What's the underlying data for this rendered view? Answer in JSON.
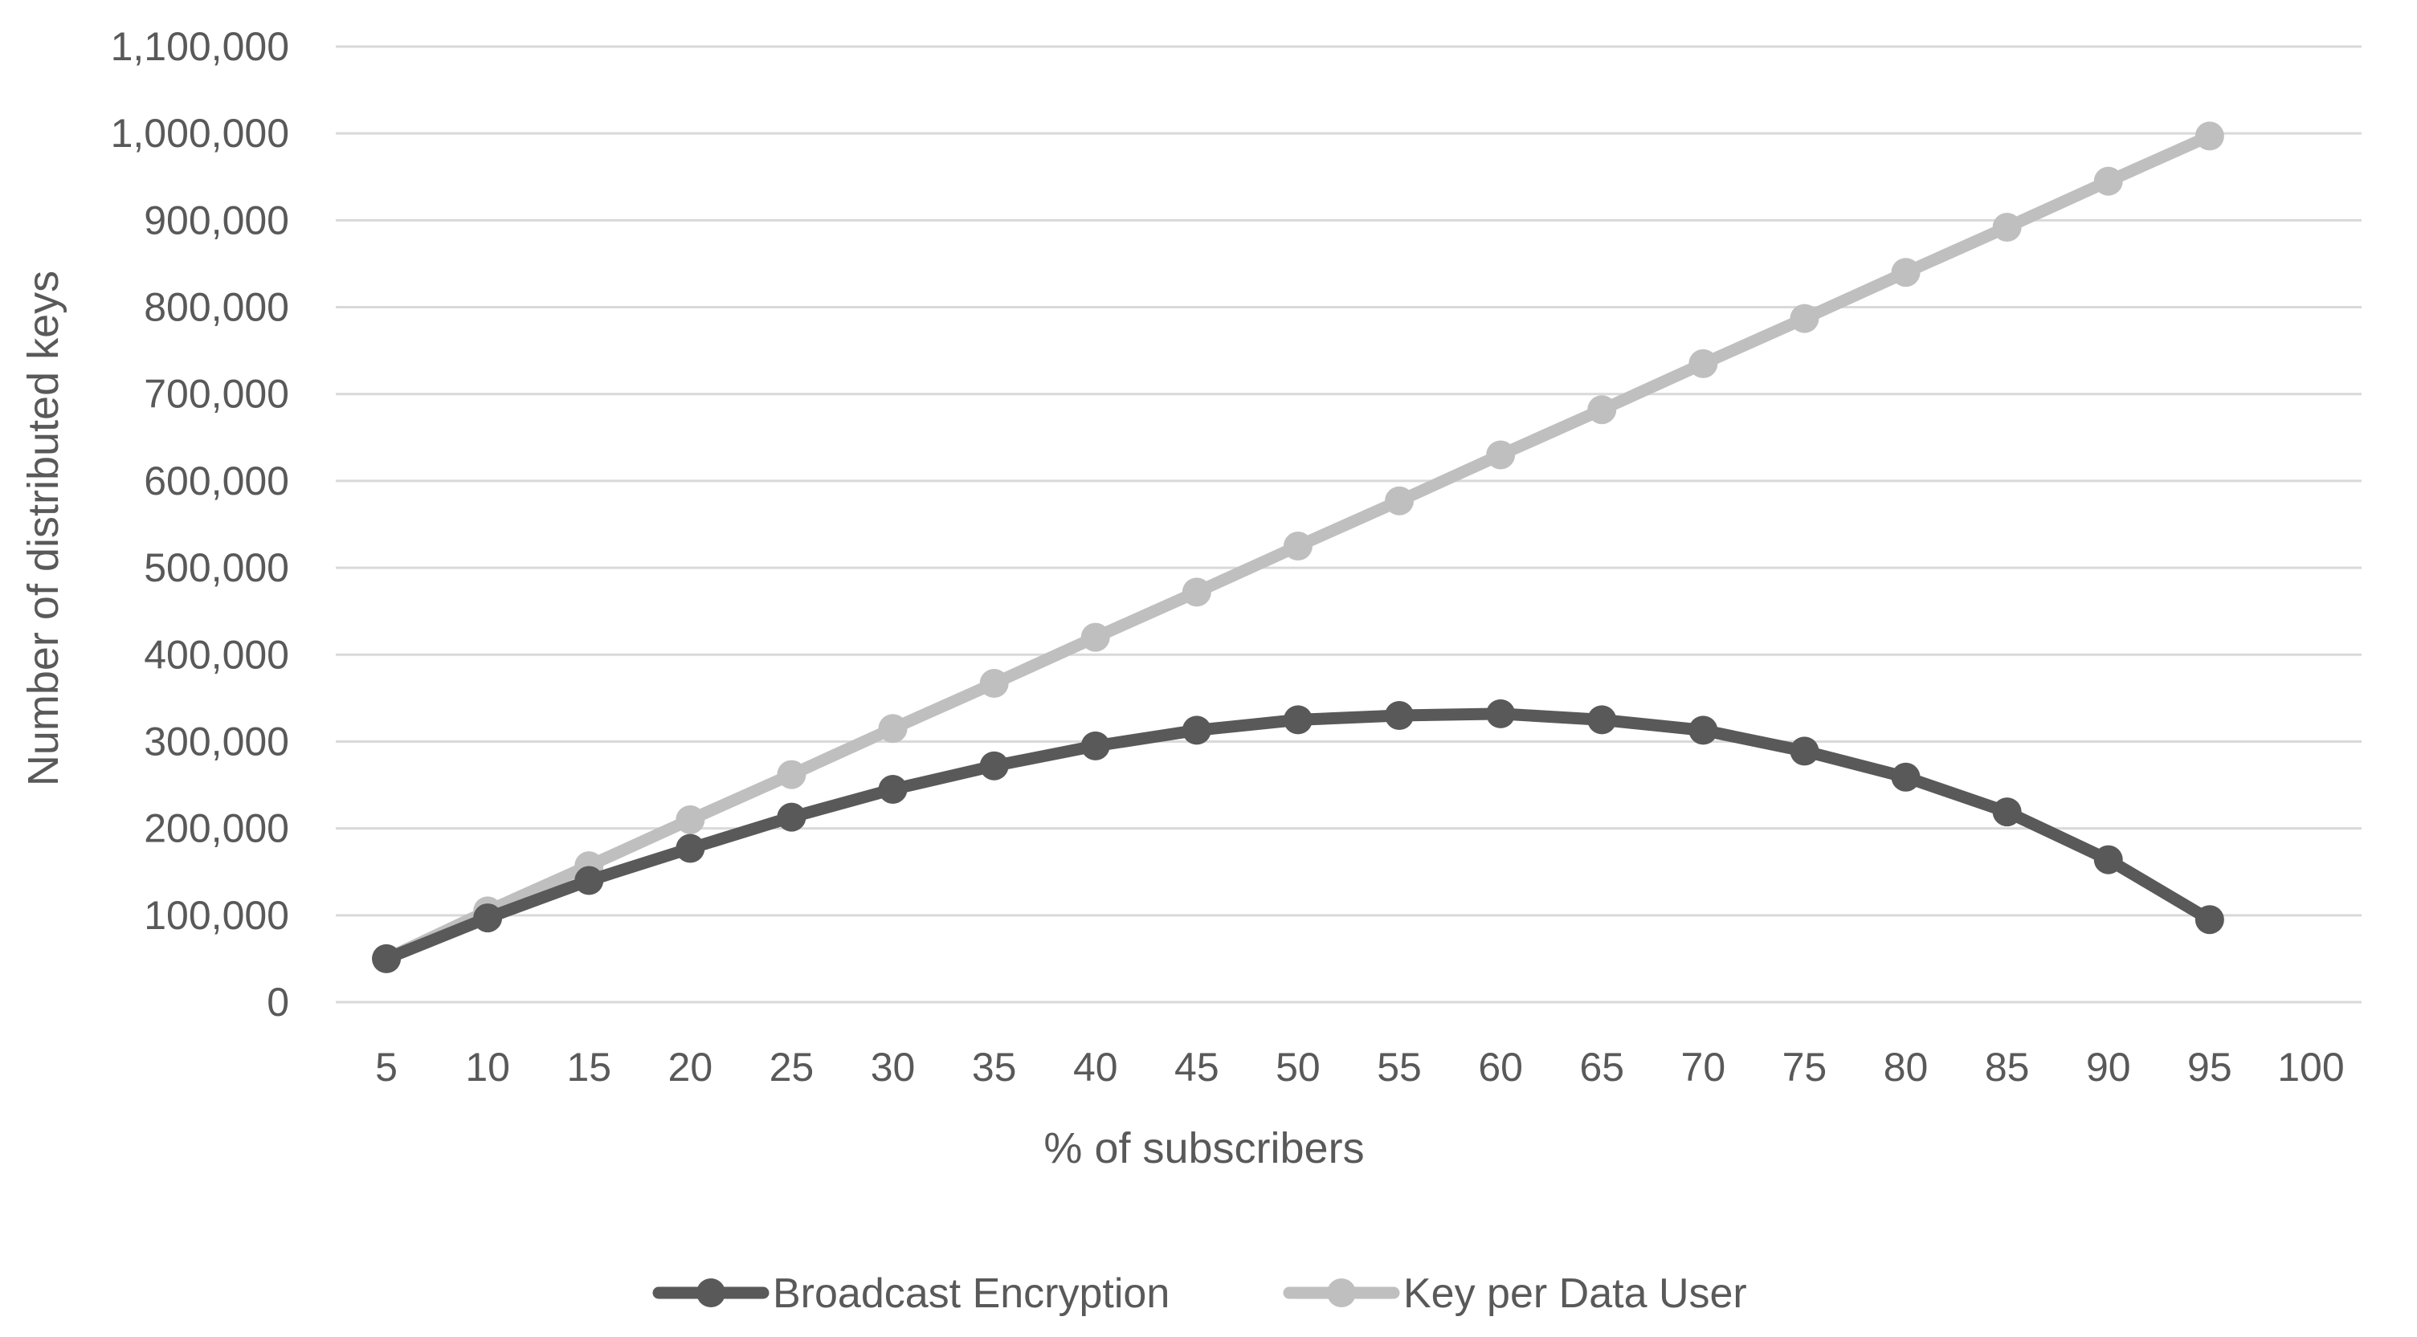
{
  "chart_data": {
    "type": "line",
    "title": "",
    "xlabel": "% of subscribers",
    "ylabel": "Number of distributed keys",
    "categories": [
      "5",
      "10",
      "15",
      "20",
      "25",
      "30",
      "35",
      "40",
      "45",
      "50",
      "55",
      "60",
      "65",
      "70",
      "75",
      "80",
      "85",
      "90",
      "95",
      "100"
    ],
    "ylim": [
      0,
      1100000
    ],
    "yticks": [
      0,
      100000,
      200000,
      300000,
      400000,
      500000,
      600000,
      700000,
      800000,
      900000,
      1000000,
      1100000
    ],
    "ytick_labels": [
      "0",
      "100,000",
      "200,000",
      "300,000",
      "400,000",
      "500,000",
      "600,000",
      "700,000",
      "800,000",
      "900,000",
      "1,000,000",
      "1,100,000"
    ],
    "grid": true,
    "legend_position": "bottom",
    "series": [
      {
        "name": "Broadcast Encryption",
        "color": "#595959",
        "values": [
          50000,
          97000,
          140000,
          177000,
          213000,
          245000,
          272000,
          295000,
          313000,
          325000,
          330000,
          332000,
          325000,
          313000,
          289000,
          259000,
          219000,
          164000,
          95000,
          null
        ]
      },
      {
        "name": "Key per Data User",
        "color": "#bfbfbf",
        "values": [
          50000,
          105000,
          157000,
          210000,
          262000,
          315000,
          367000,
          420000,
          472000,
          525000,
          577000,
          630000,
          682000,
          735000,
          787000,
          840000,
          892000,
          945000,
          997000,
          null
        ]
      }
    ]
  }
}
